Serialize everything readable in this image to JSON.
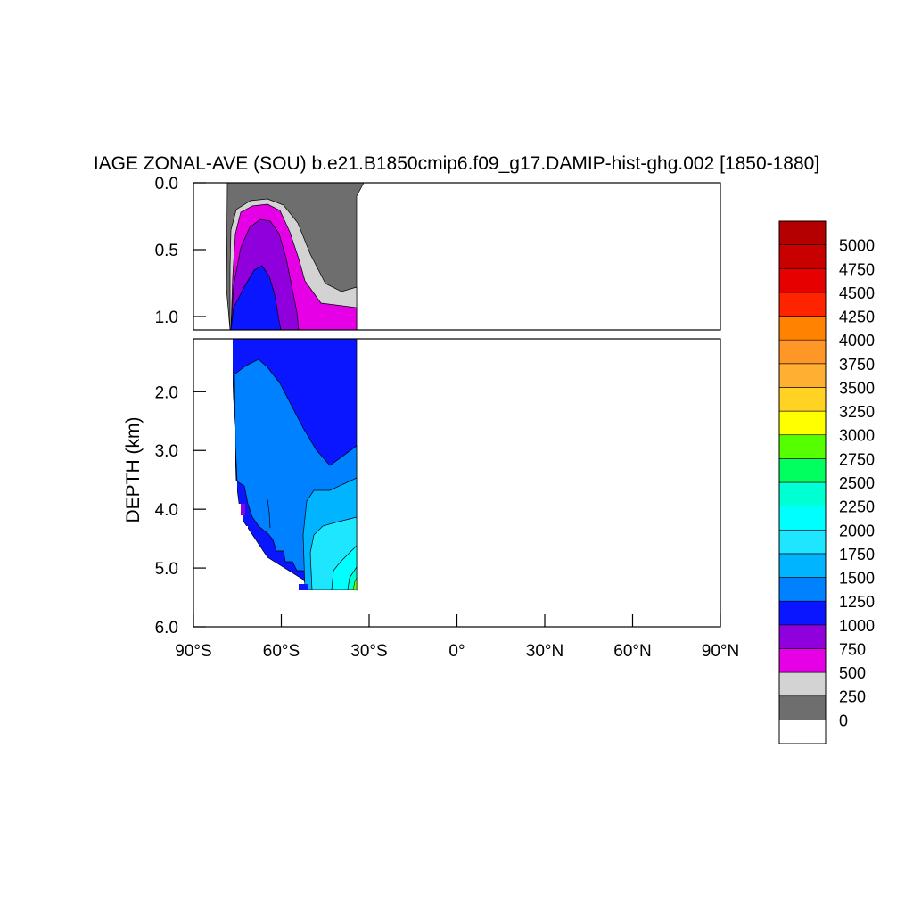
{
  "chart_data": {
    "type": "heatmap",
    "title": "IAGE ZONAL-AVE (SOU) b.e21.B1850cmip6.f09_g17.DAMIP-hist-ghg.002 [1850-1880]",
    "ylabel": "DEPTH (km)",
    "xlabel": "",
    "x_ticks": [
      "90°S",
      "60°S",
      "30°S",
      "0°",
      "30°N",
      "60°N",
      "90°N"
    ],
    "x_tick_values": [
      -90,
      -60,
      -30,
      0,
      30,
      60,
      90
    ],
    "xlim": [
      -90,
      90
    ],
    "upper_panel": {
      "ylim": [
        0,
        1.1
      ],
      "y_ticks": [
        "0.0",
        "0.5",
        "1.0"
      ],
      "y_tick_values": [
        0,
        0.5,
        1.0
      ]
    },
    "lower_panel": {
      "ylim": [
        1.1,
        6.0
      ],
      "y_ticks": [
        "2.0",
        "3.0",
        "4.0",
        "5.0",
        "6.0"
      ],
      "y_tick_values": [
        2,
        3,
        4,
        5,
        6
      ]
    },
    "colorbar": {
      "labels": [
        "0",
        "250",
        "500",
        "750",
        "1000",
        "1250",
        "1500",
        "1750",
        "2000",
        "2250",
        "2500",
        "2750",
        "3000",
        "3250",
        "3500",
        "3750",
        "4000",
        "4250",
        "4500",
        "4750",
        "5000"
      ],
      "levels": [
        0,
        250,
        500,
        750,
        1000,
        1250,
        1500,
        1750,
        2000,
        2250,
        2500,
        2750,
        3000,
        3250,
        3500,
        3750,
        4000,
        4250,
        4500,
        4750,
        5000
      ],
      "colors": [
        "#ffffff",
        "#6e6e6e",
        "#d3d3d3",
        "#e600e6",
        "#8f00dc",
        "#0a16ff",
        "#0081ff",
        "#00b4ff",
        "#1ee6ff",
        "#00ffff",
        "#00ffd2",
        "#00ff5f",
        "#55ff00",
        "#ffff00",
        "#ffd223",
        "#ffaf32",
        "#ff9628",
        "#ff8200",
        "#ff2300",
        "#e60000",
        "#c80000",
        "#b40000"
      ]
    },
    "grid": false
  }
}
